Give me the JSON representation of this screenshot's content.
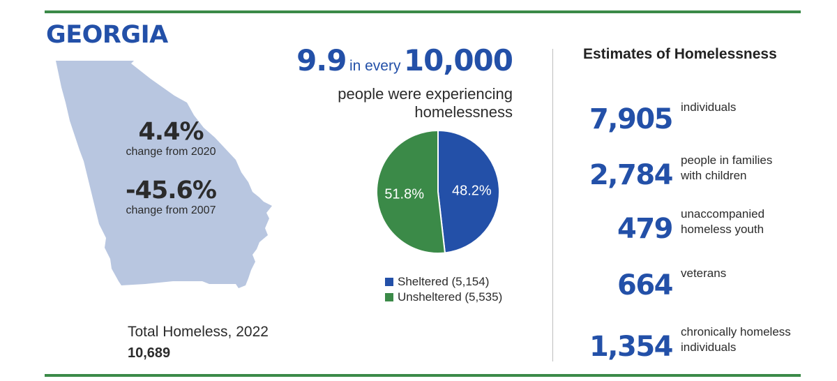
{
  "colors": {
    "accent_blue": "#2350a8",
    "accent_green": "#3b8a48",
    "rule_green": "#3b8a48",
    "map_fill": "#b8c6e0",
    "text_dark": "#2b2b2b"
  },
  "state": {
    "name": "GEORGIA",
    "change_2020": {
      "value": "4.4%",
      "label": "change from 2020"
    },
    "change_2007": {
      "value": "-45.6%",
      "label": "change from 2007"
    }
  },
  "total": {
    "label": "Total Homeless, 2022",
    "value": "10,689"
  },
  "rate": {
    "number": "9.9",
    "connector": "in every",
    "per": "10,000",
    "text_line1": "people were experiencing",
    "text_line2": "homelessness"
  },
  "chart_data": {
    "type": "pie",
    "slices": [
      {
        "name": "Sheltered",
        "value": 48.2,
        "label": "48.2%",
        "count": "5,154",
        "color": "#2350a8"
      },
      {
        "name": "Unsheltered",
        "value": 51.8,
        "label": "51.8%",
        "count": "5,535",
        "color": "#3b8a48"
      }
    ],
    "legend": [
      "Sheltered (5,154)",
      "Unsheltered (5,535)"
    ],
    "legend_position": "bottom"
  },
  "estimates": {
    "title": "Estimates of Homelessness",
    "items": [
      {
        "number": "7,905",
        "label_lines": [
          "individuals"
        ]
      },
      {
        "number": "2,784",
        "label_lines": [
          "people in families",
          "with children"
        ]
      },
      {
        "number": "479",
        "label_lines": [
          "unaccompanied",
          "homeless youth"
        ]
      },
      {
        "number": "664",
        "label_lines": [
          "veterans"
        ]
      },
      {
        "number": "1,354",
        "label_lines": [
          "chronically homeless",
          "individuals"
        ]
      }
    ]
  }
}
